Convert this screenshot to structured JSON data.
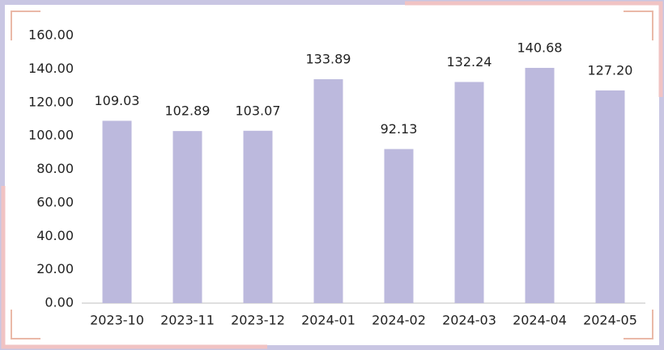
{
  "chart_data": {
    "type": "bar",
    "categories": [
      "2023-10",
      "2023-11",
      "2023-12",
      "2024-01",
      "2024-02",
      "2024-03",
      "2024-04",
      "2024-05"
    ],
    "values": [
      109.03,
      102.89,
      103.07,
      133.89,
      92.13,
      132.24,
      140.68,
      127.2
    ],
    "value_labels": [
      "109.03",
      "102.89",
      "103.07",
      "133.89",
      "92.13",
      "132.24",
      "140.68",
      "127.20"
    ],
    "color": "#bcb9dd",
    "ylim": [
      0,
      160
    ],
    "yticks": [
      {
        "value": 0,
        "label": "0.00"
      },
      {
        "value": 20,
        "label": "20.00"
      },
      {
        "value": 40,
        "label": "40.00"
      },
      {
        "value": 60,
        "label": "60.00"
      },
      {
        "value": 80,
        "label": "80.00"
      },
      {
        "value": 100,
        "label": "100.00"
      },
      {
        "value": 120,
        "label": "120.00"
      },
      {
        "value": 140,
        "label": "140.00"
      },
      {
        "value": 160,
        "label": "160.00"
      }
    ],
    "grid": false
  }
}
